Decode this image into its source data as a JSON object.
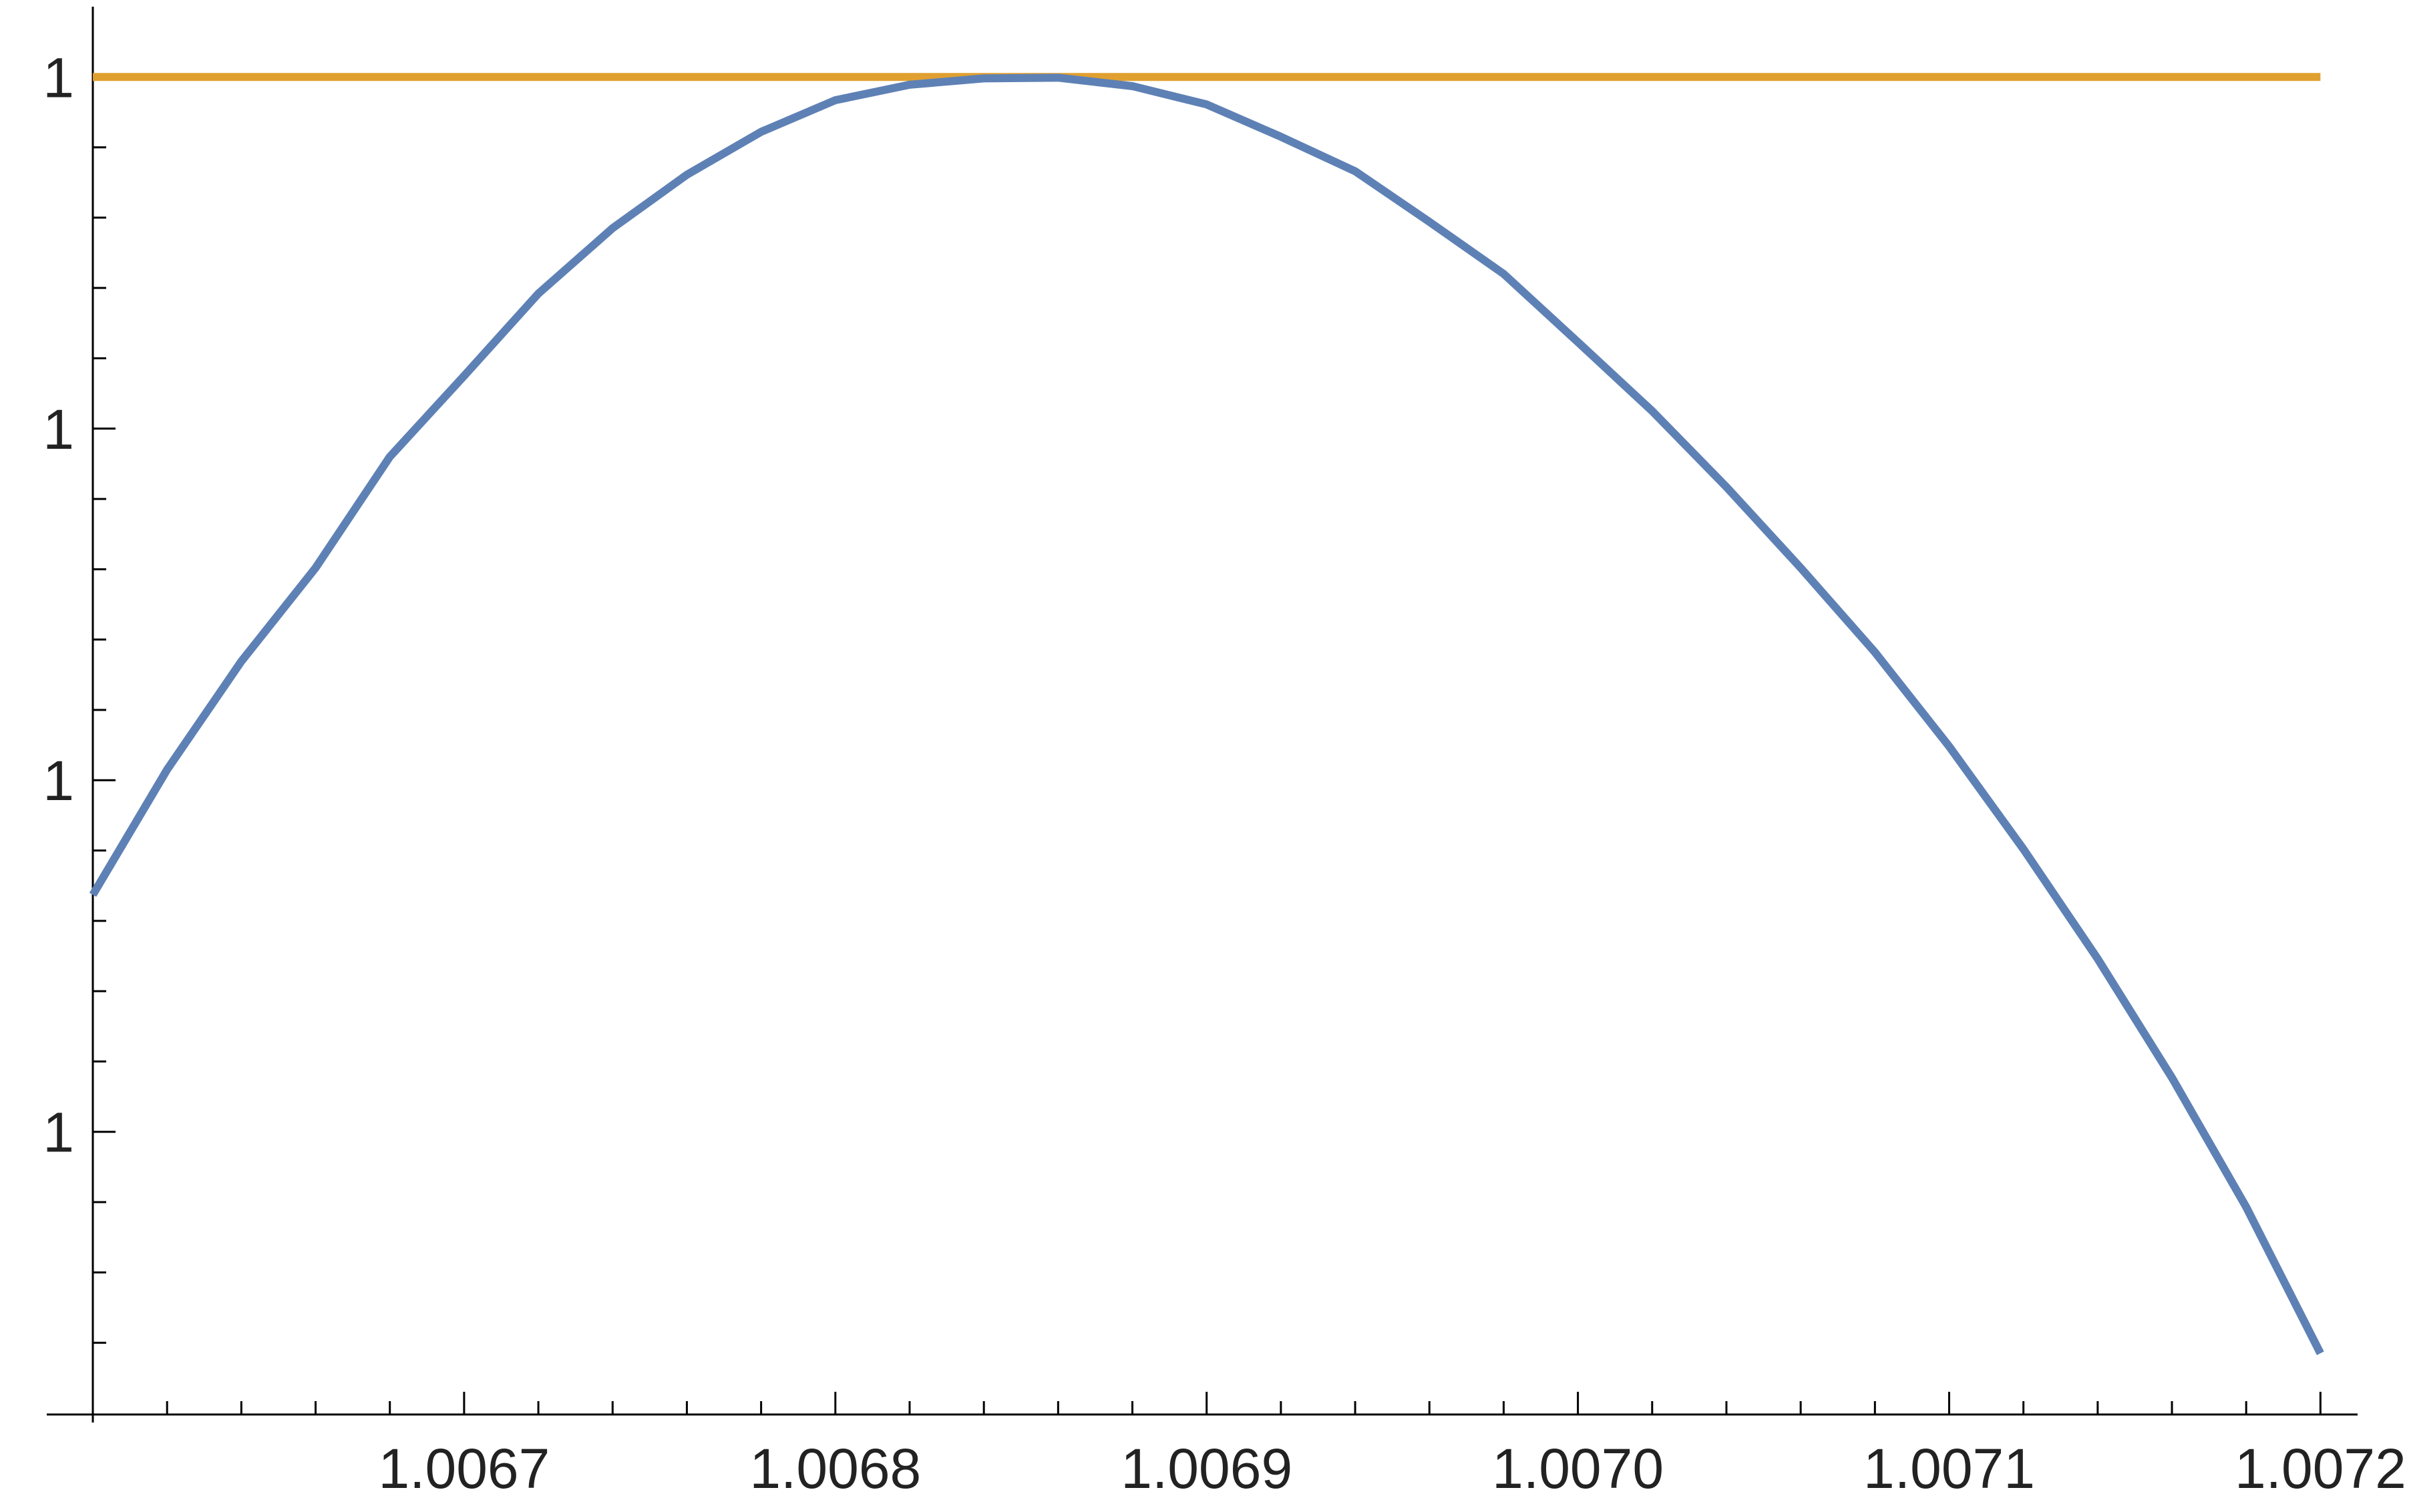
{
  "chart_data": {
    "type": "line",
    "xlim": [
      1.0066,
      1.00721
    ],
    "ylim": [
      0.99999998098,
      1.000000001
    ],
    "xticks": [
      1.0067,
      1.0068,
      1.0069,
      {
        "value": 1.007,
        "label": "1.0070"
      },
      1.0071,
      1.0072
    ],
    "xminorticks": [
      1.00662,
      1.00664,
      1.00666,
      1.00668,
      1.00672,
      1.00674,
      1.00676,
      1.00678,
      1.00682,
      1.00684,
      1.00686,
      1.00688,
      1.00692,
      1.00694,
      1.00696,
      1.00698,
      1.00702,
      1.00704,
      1.00706,
      1.00708,
      1.00712,
      1.00714,
      1.00716,
      1.00718
    ],
    "yticks": [
      {
        "value": 1,
        "label": "1"
      },
      {
        "value": 0.999999995,
        "label": "1"
      },
      {
        "value": 0.99999999,
        "label": "1"
      },
      {
        "value": 0.999999985,
        "label": "1"
      }
    ],
    "yminorticks": [
      0.999999999,
      0.999999998,
      0.999999997,
      0.999999996,
      0.999999994,
      0.999999993,
      0.999999992,
      0.999999991,
      0.999999989,
      0.999999988,
      0.999999987,
      0.999999986,
      0.999999984,
      0.999999983,
      0.999999982
    ],
    "series": [
      {
        "color": "#5e81b5",
        "x": [
          1.0066,
          1.00662,
          1.00664,
          1.00666,
          1.00668,
          1.0067,
          1.00672,
          1.00674,
          1.00676,
          1.00678,
          1.0068,
          1.00682,
          1.00684,
          1.00686,
          1.00688,
          1.0069,
          1.00692,
          1.00694,
          1.00696,
          1.00698,
          1.007,
          1.00702,
          1.00704,
          1.00706,
          1.00708,
          1.0071,
          1.00712,
          1.00714,
          1.00716,
          1.00718,
          1.0072
        ],
        "values": [
          0.99999998837,
          0.99999999015,
          0.99999999169,
          0.99999999302,
          0.9999999946,
          0.99999999575,
          0.99999999692,
          0.99999999785,
          0.99999999861,
          0.99999999922,
          0.99999999967,
          0.99999999989,
          0.99999999998,
          0.99999999999,
          0.99999999987,
          0.99999999961,
          0.99999999915,
          0.99999999866,
          0.99999999794,
          0.9999999972,
          0.99999999623,
          0.99999999525,
          0.99999999417,
          0.99999999302,
          0.99999999182,
          0.99999999048,
          0.99999998902,
          0.99999998746,
          0.99999998577,
          0.99999998393,
          0.99999998185
        ]
      },
      {
        "color": "#e0a030",
        "x": [
          1.0066,
          1.0072
        ],
        "values": [
          1,
          1
        ]
      }
    ]
  }
}
